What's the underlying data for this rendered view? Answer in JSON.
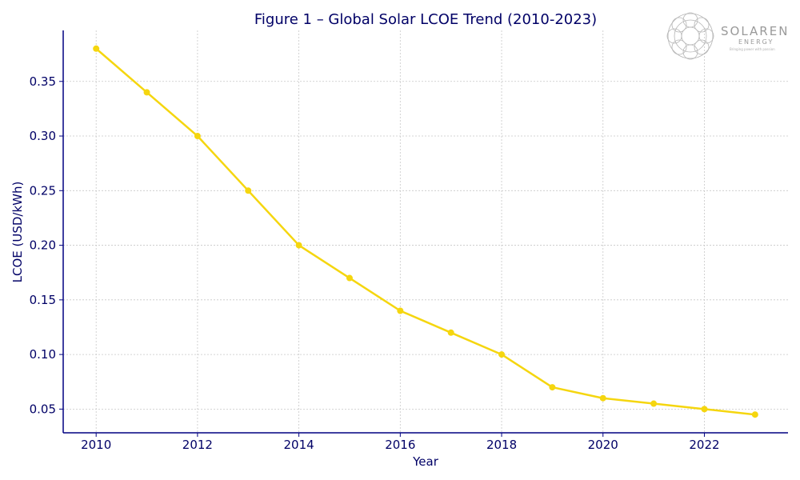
{
  "chart_data": {
    "type": "line",
    "title": "Figure 1 – Global Solar LCOE Trend (2010-2023)",
    "xlabel": "Year",
    "ylabel": "LCOE (USD/kWh)",
    "x": [
      2010,
      2011,
      2012,
      2013,
      2014,
      2015,
      2016,
      2017,
      2018,
      2019,
      2020,
      2021,
      2022,
      2023
    ],
    "series": [
      {
        "name": "LCOE",
        "values": [
          0.38,
          0.34,
          0.3,
          0.25,
          0.2,
          0.17,
          0.14,
          0.12,
          0.1,
          0.07,
          0.06,
          0.055,
          0.05,
          0.045
        ]
      }
    ],
    "xlim": [
      2009.35,
      2023.65
    ],
    "ylim": [
      0.0283,
      0.3967
    ],
    "xticks": [
      2010,
      2012,
      2014,
      2016,
      2018,
      2020,
      2022
    ],
    "xtick_labels": [
      "2010",
      "2012",
      "2014",
      "2016",
      "2018",
      "2020",
      "2022"
    ],
    "yticks": [
      0.05,
      0.1,
      0.15,
      0.2,
      0.25,
      0.3,
      0.35
    ],
    "ytick_labels": [
      "0.05",
      "0.10",
      "0.15",
      "0.20",
      "0.25",
      "0.30",
      "0.35"
    ],
    "grid": true,
    "line_color": "#f5d60f",
    "axis_color": "#000080",
    "text_color": "#000066",
    "grid_color": "#c8c8c8"
  },
  "logo": {
    "name": "SOLAREN",
    "subtitle": "ENERGY",
    "tagline": "Bringing power with passion"
  }
}
